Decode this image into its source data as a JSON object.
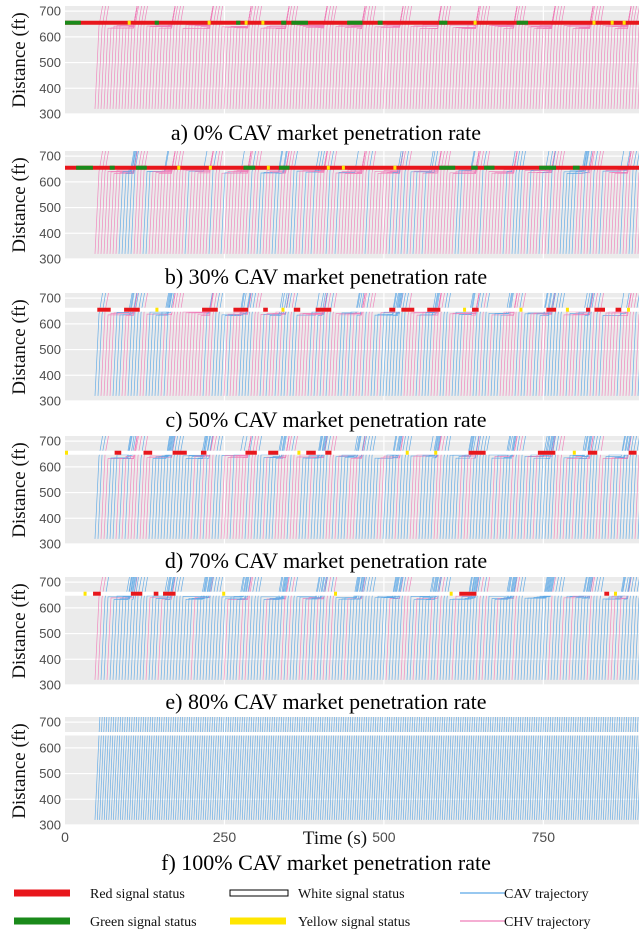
{
  "chart_data": {
    "type": "line",
    "shared_x_axis": {
      "label": "Time (s)",
      "range": [
        0,
        900
      ],
      "ticks": [
        "0",
        "250",
        "500",
        "750"
      ]
    },
    "y_axis": {
      "label": "Distance (ft)",
      "range": [
        300,
        720
      ],
      "ticks": [
        "300",
        "400",
        "500",
        "600",
        "700"
      ]
    },
    "stop_line_ft": 655,
    "grid": true,
    "panels": [
      {
        "caption": "a) 0% CAV market penetration rate",
        "cav_share": 0.0,
        "signal_colors": [
          "red",
          "green",
          "yellow"
        ]
      },
      {
        "caption": "b) 30% CAV market penetration rate",
        "cav_share": 0.3,
        "signal_colors": [
          "red",
          "green",
          "yellow"
        ]
      },
      {
        "caption": "c) 50% CAV market penetration rate",
        "cav_share": 0.5,
        "signal_colors": [
          "red",
          "white",
          "yellow",
          "green"
        ]
      },
      {
        "caption": "d) 70% CAV market penetration rate",
        "cav_share": 0.7,
        "signal_colors": [
          "red",
          "white",
          "yellow"
        ]
      },
      {
        "caption": "e) 80% CAV market penetration rate",
        "cav_share": 0.8,
        "signal_colors": [
          "red",
          "white",
          "yellow"
        ]
      },
      {
        "caption": "f) 100% CAV market penetration rate",
        "cav_share": 1.0,
        "signal_colors": [
          "white"
        ]
      }
    ],
    "legend": [
      {
        "label": "Red signal status",
        "color": "#e8161b",
        "kind": "signal"
      },
      {
        "label": "White signal status",
        "color": "#ffffff",
        "kind": "signal-outlined"
      },
      {
        "label": "CAV trajectory",
        "color": "#5aa6e6",
        "kind": "trajectory"
      },
      {
        "label": "Green signal status",
        "color": "#1a8a1a",
        "kind": "signal"
      },
      {
        "label": "Yellow signal status",
        "color": "#ffe600",
        "kind": "signal"
      },
      {
        "label": "CHV trajectory",
        "color": "#ef7eb9",
        "kind": "trajectory"
      }
    ]
  }
}
